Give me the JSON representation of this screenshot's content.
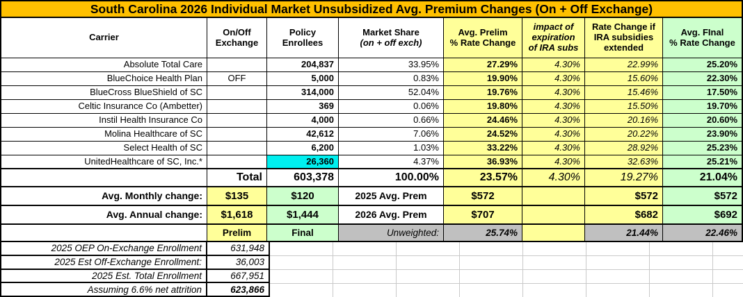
{
  "palette": {
    "title_bg": "#FFC000",
    "yellow": "#FFFF99",
    "green": "#CCFFCC",
    "gray": "#C0C0C0",
    "cyan": "#00EFEF"
  },
  "title": "South Carolina 2026 Individual Market Unsubsidized Avg. Premium Changes (On + Off Exchange)",
  "header": {
    "carrier": "Carrier",
    "exchange": "On/Off\nExchange",
    "enrollees": "Policy\nEnrollees",
    "share_main": "Market Share",
    "share_sub": "(on + off exch)",
    "prelim": "Avg. Prelim\n% Rate Change",
    "impact": "impact of\nexpiration\nof IRA subs",
    "extended": "Rate Change if\nIRA subsidies\nextended",
    "final": "Avg. FInal\n% Rate Change"
  },
  "carriers": [
    {
      "carrier": "Absolute Total Care",
      "exchange": "",
      "enrollees": "204,837",
      "share": "33.95%",
      "prelim": "27.29%",
      "impact": "4.30%",
      "extended": "22.99%",
      "final": "25.20%"
    },
    {
      "carrier": "BlueChoice Health Plan",
      "exchange": "OFF",
      "enrollees": "5,000",
      "share": "0.83%",
      "prelim": "19.90%",
      "impact": "4.30%",
      "extended": "15.60%",
      "final": "22.30%"
    },
    {
      "carrier": "BlueCross BlueShield of SC",
      "exchange": "",
      "enrollees": "314,000",
      "share": "52.04%",
      "prelim": "19.76%",
      "impact": "4.30%",
      "extended": "15.46%",
      "final": "17.50%"
    },
    {
      "carrier": "Celtic Insurance Co (Ambetter)",
      "exchange": "",
      "enrollees": "369",
      "share": "0.06%",
      "prelim": "19.80%",
      "impact": "4.30%",
      "extended": "15.50%",
      "final": "19.70%"
    },
    {
      "carrier": "Instil Health Insurance Co",
      "exchange": "",
      "enrollees": "4,000",
      "share": "0.66%",
      "prelim": "24.46%",
      "impact": "4.30%",
      "extended": "20.16%",
      "final": "20.60%"
    },
    {
      "carrier": "Molina Healthcare of SC",
      "exchange": "",
      "enrollees": "42,612",
      "share": "7.06%",
      "prelim": "24.52%",
      "impact": "4.30%",
      "extended": "20.22%",
      "final": "23.90%"
    },
    {
      "carrier": "Select Health of SC",
      "exchange": "",
      "enrollees": "6,200",
      "share": "1.03%",
      "prelim": "33.22%",
      "impact": "4.30%",
      "extended": "28.92%",
      "final": "25.23%"
    },
    {
      "carrier": "UnitedHealthcare of SC, Inc.*",
      "exchange": "",
      "enrollees": "26,360",
      "enrollees_highlight": true,
      "share": "4.37%",
      "prelim": "36.93%",
      "impact": "4.30%",
      "extended": "32.63%",
      "final": "25.21%"
    }
  ],
  "total": {
    "label": "Total",
    "enrollees": "603,378",
    "share": "100.00%",
    "prelim": "23.57%",
    "impact": "4.30%",
    "extended": "19.27%",
    "final": "21.04%"
  },
  "summary": {
    "monthly": {
      "label": "Avg. Monthly change:",
      "prelim_change": "$135",
      "final_change": "$120",
      "prem_label": "2025 Avg. Prem",
      "prelim": "$572",
      "extended": "$572",
      "final": "$572"
    },
    "annual": {
      "label": "Avg. Annual change:",
      "prelim_change": "$1,618",
      "final_change": "$1,444",
      "prem_label": "2026 Avg. Prem",
      "prelim": "$707",
      "extended": "$682",
      "final": "$692"
    },
    "unweighted": {
      "prelim_label": "Prelim",
      "final_label": "Final",
      "label": "Unweighted:",
      "prelim": "25.74%",
      "extended": "21.44%",
      "final": "22.46%"
    }
  },
  "footnotes": [
    {
      "label": "2025 OEP On-Exchange Enrollment",
      "value": "631,948"
    },
    {
      "label": "2025 Est Off-Exchange Enrollment:",
      "value": "36,003"
    },
    {
      "label": "2025 Est. Total Enrollment",
      "value": "667,951"
    },
    {
      "label": "Assuming 6.6% net attrition",
      "value": "623,866"
    }
  ]
}
